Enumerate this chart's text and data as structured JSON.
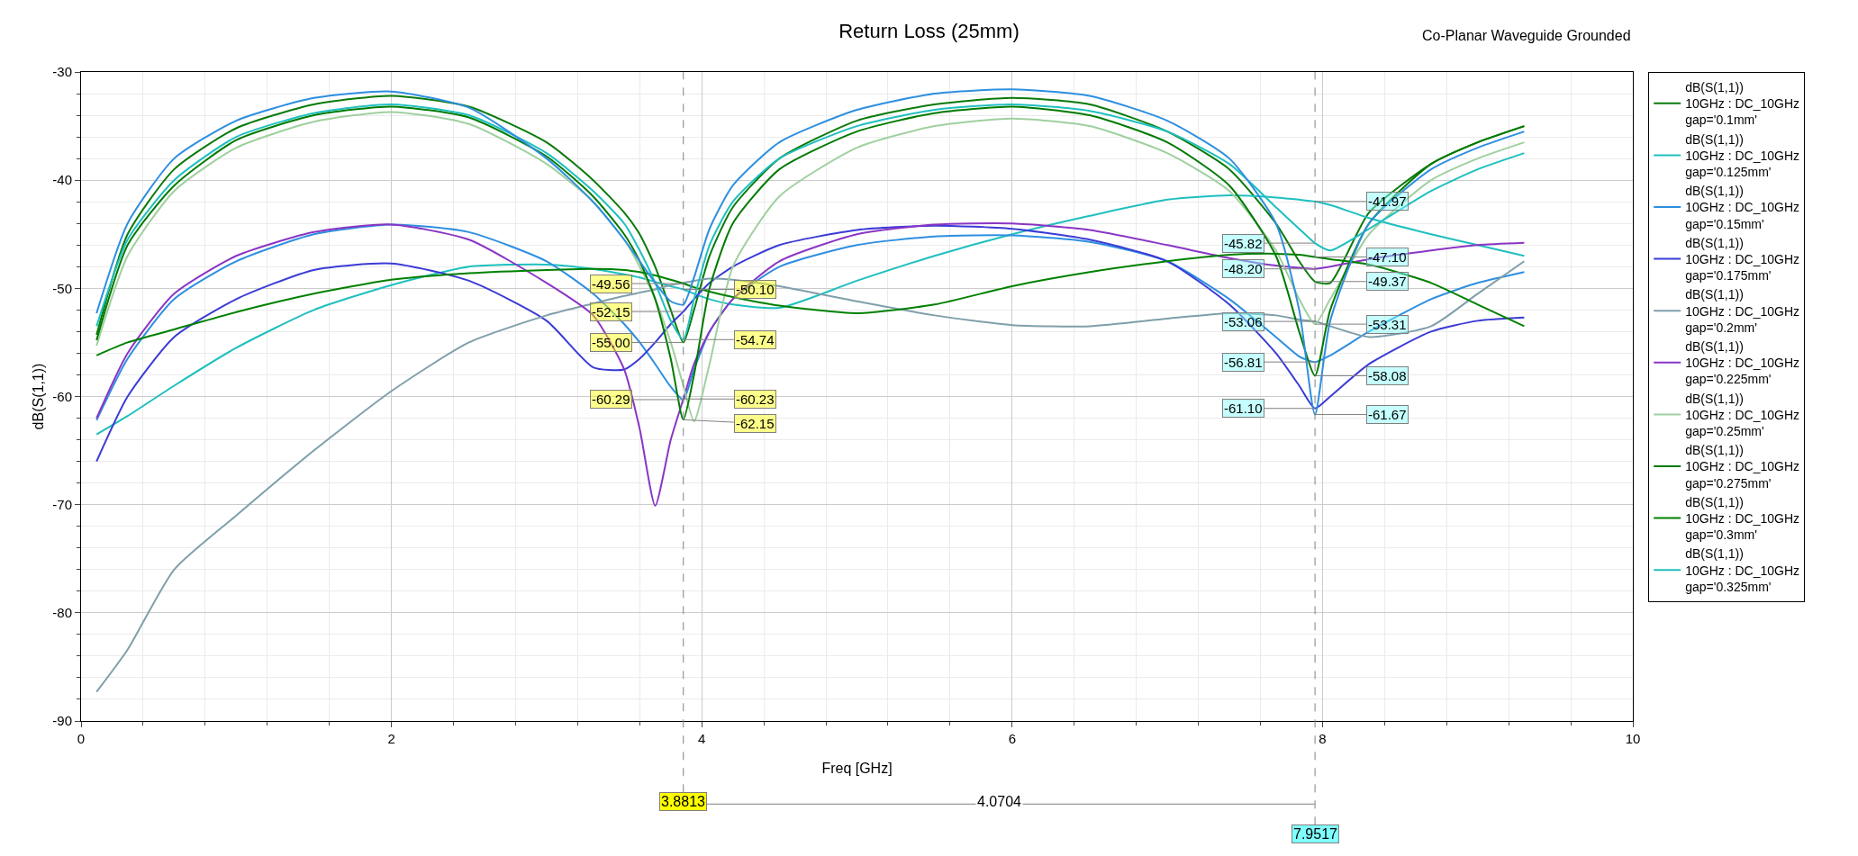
{
  "chart_data": {
    "type": "line",
    "title": "Return Loss (25mm)",
    "subtitle": "Co-Planar Waveguide Grounded",
    "xlabel": "Freq [GHz]",
    "ylabel": "dB(S(1,1))",
    "x": [
      0.1,
      0.3,
      0.6,
      1,
      1.5,
      2,
      2.5,
      3,
      3.3,
      3.5,
      3.6,
      3.7,
      3.8,
      3.8813,
      3.95,
      4.05,
      4.2,
      4.5,
      5,
      5.5,
      6,
      6.5,
      7,
      7.4,
      7.7,
      7.85,
      7.9517,
      8.05,
      8.3,
      8.7,
      9,
      9.3
    ],
    "xlim": [
      0,
      10
    ],
    "xticks": [
      0,
      2,
      4,
      6,
      8,
      10
    ],
    "ylim": [
      -90,
      -30
    ],
    "yticks": [
      -90,
      -80,
      -70,
      -60,
      -50,
      -40,
      -30
    ],
    "grid": true,
    "legend": "right",
    "line_style": "solid",
    "series": [
      {
        "name": "dB(S(1,1))\n10GHz : DC_10GHz\ngap='0.1mm'",
        "color": "#0a7a0a",
        "values": [
          -54.3,
          -45,
          -39,
          -35.2,
          -33,
          -32.2,
          -33.2,
          -36.5,
          -40,
          -43,
          -45,
          -48,
          -52,
          -55.0,
          -52,
          -47,
          -42.5,
          -38,
          -34.5,
          -33,
          -32.4,
          -33,
          -35.5,
          -39,
          -44,
          -47.5,
          -49.37,
          -49.5,
          -43,
          -38.5,
          -36.5,
          -35
        ]
      },
      {
        "name": "dB(S(1,1))\n10GHz : DC_10GHz\ngap='0.125mm'",
        "color": "#1fbfbf",
        "values": [
          -63.5,
          -61.8,
          -59,
          -55.5,
          -52,
          -49.7,
          -48,
          -47.8,
          -48.2,
          -48.7,
          -49,
          -49.4,
          -49.8,
          -50.1,
          -50.5,
          -51,
          -51.5,
          -51.8,
          -49.3,
          -47,
          -45,
          -43.3,
          -41.8,
          -41.4,
          -41.6,
          -41.8,
          -41.97,
          -42.3,
          -43.5,
          -45,
          -46,
          -47
        ]
      },
      {
        "name": "dB(S(1,1))\n10GHz : DC_10GHz\ngap='0.15mm'",
        "color": "#2e8fe0",
        "values": [
          -62.2,
          -56.5,
          -51,
          -47.5,
          -45,
          -44.1,
          -44.8,
          -47.5,
          -50.5,
          -53.3,
          -55,
          -57,
          -59.1,
          -60.29,
          -57.5,
          -54,
          -51,
          -48,
          -46,
          -45.2,
          -45.1,
          -45.7,
          -47.5,
          -51,
          -54.5,
          -56.3,
          -56.81,
          -56.2,
          -54,
          -51,
          -49.5,
          -48.5
        ]
      },
      {
        "name": "dB(S(1,1))\n10GHz : DC_10GHz\ngap='0.175mm'",
        "color": "#3b3bd6",
        "values": [
          -66,
          -60,
          -54.5,
          -51,
          -48.3,
          -47.7,
          -49.3,
          -53,
          -57.3,
          -57.5,
          -56.5,
          -55,
          -53.3,
          -52.15,
          -51,
          -49.5,
          -48,
          -46,
          -44.6,
          -44.2,
          -44.5,
          -45.5,
          -47.5,
          -51.5,
          -56,
          -59,
          -61.1,
          -60,
          -57,
          -54,
          -53,
          -52.7
        ]
      },
      {
        "name": "dB(S(1,1))\n10GHz : DC_10GHz\ngap='0.2mm'",
        "color": "#7f9faa",
        "values": [
          -87.3,
          -83.4,
          -76,
          -71,
          -65,
          -59.5,
          -55,
          -52.5,
          -51.4,
          -50.7,
          -50.4,
          -50.1,
          -49.7,
          -49.5,
          -49.3,
          -49.1,
          -49.2,
          -49.8,
          -51.2,
          -52.5,
          -53.4,
          -53.5,
          -52.8,
          -52.3,
          -52.5,
          -52.9,
          -53.06,
          -53.5,
          -54.5,
          -53.5,
          -50.5,
          -47.5
        ]
      },
      {
        "name": "dB(S(1,1))\n10GHz : DC_10GHz\ngap='0.225mm'",
        "color": "#8a35c4",
        "values": [
          -62,
          -56,
          -50.5,
          -47,
          -44.8,
          -44.1,
          -45.5,
          -49.5,
          -52.5,
          -57.5,
          -63,
          -70.1,
          -64,
          -60.23,
          -57,
          -54,
          -51,
          -47.5,
          -45,
          -44.1,
          -44,
          -44.6,
          -46,
          -47.2,
          -47.9,
          -48.1,
          -48.2,
          -48,
          -47.3,
          -46.5,
          -46,
          -45.8
        ]
      },
      {
        "name": "dB(S(1,1))\n10GHz : DC_10GHz\ngap='0.25mm'",
        "color": "#9fd09f",
        "values": [
          -55.3,
          -47,
          -41,
          -37,
          -34.6,
          -33.7,
          -34.8,
          -38.5,
          -42,
          -45.5,
          -48,
          -51,
          -55,
          -59,
          -62.3,
          -57,
          -48,
          -41.5,
          -37,
          -35,
          -34.3,
          -35,
          -37.5,
          -41,
          -46.5,
          -51,
          -53.31,
          -51,
          -45,
          -40,
          -38,
          -36.5
        ]
      },
      {
        "name": "dB(S(1,1))\n10GHz : DC_10GHz\ngap='0.275mm'",
        "color": "#007a00",
        "values": [
          -54.8,
          -46,
          -40.5,
          -36.3,
          -34,
          -33.2,
          -34.2,
          -37.8,
          -41.5,
          -45,
          -47.5,
          -51,
          -56.5,
          -62.15,
          -58,
          -50,
          -44,
          -39,
          -35.5,
          -33.8,
          -33.2,
          -34,
          -36.5,
          -40.5,
          -47,
          -54,
          -58.08,
          -52,
          -44,
          -38.5,
          -36.5,
          -35
        ]
      },
      {
        "name": "dB(S(1,1))\n10GHz : DC_10GHz\ngap='0.3mm'",
        "color": "#008000",
        "values": [
          -56.2,
          -55,
          -53.8,
          -52.2,
          -50.5,
          -49.2,
          -48.6,
          -48.3,
          -48.2,
          -48.3,
          -48.5,
          -48.8,
          -49.2,
          -49.56,
          -49.9,
          -50.3,
          -50.8,
          -51.6,
          -52.3,
          -51.5,
          -49.8,
          -48.5,
          -47.5,
          -46.9,
          -46.8,
          -46.9,
          -47.1,
          -47.3,
          -47.8,
          -49.5,
          -51.5,
          -53.5
        ]
      },
      {
        "name": "dB(S(1,1))\n10GHz : DC_10GHz\ngap='0.325mm'",
        "color": "#1fbfbf",
        "values": [
          -53.5,
          -45.5,
          -40,
          -36,
          -33.8,
          -33,
          -34,
          -37.5,
          -41,
          -44,
          -46.5,
          -49.5,
          -53,
          -54.74,
          -51,
          -46,
          -42,
          -38,
          -35,
          -33.5,
          -33,
          -33.6,
          -35.5,
          -38.5,
          -42.5,
          -44.5,
          -45.82,
          -46.5,
          -44.5,
          -41,
          -39,
          -37.5
        ]
      },
      {
        "color": "#2e8fe0",
        "values": [
          -52.3,
          -44,
          -38,
          -34.5,
          -32.4,
          -31.8,
          -33.3,
          -38,
          -42,
          -45.5,
          -47.5,
          -49.5,
          -51.2,
          -51.5,
          -49,
          -44.5,
          -40.5,
          -36.5,
          -33.5,
          -32,
          -31.6,
          -32.2,
          -34.5,
          -38,
          -44,
          -52,
          -61.67,
          -53,
          -44,
          -39,
          -37,
          -35.5
        ]
      }
    ],
    "ref_lines": [
      {
        "axis": "x",
        "value": 3.8813,
        "label": "3.8813",
        "color": "#808080",
        "line_style": "dashed"
      },
      {
        "axis": "x",
        "value": 7.9517,
        "label": "7.9517",
        "color": "#808080",
        "line_style": "dashed"
      }
    ],
    "annotations": [
      {
        "text": "-49.56",
        "x": 3.8813,
        "y": -49.56
      },
      {
        "text": "-50.10",
        "x": 3.8813,
        "y": -50.1
      },
      {
        "text": "-52.15",
        "x": 3.8813,
        "y": -52.15
      },
      {
        "text": "-54.74",
        "x": 3.8813,
        "y": -54.74
      },
      {
        "text": "-55.00",
        "x": 3.8813,
        "y": -55.0
      },
      {
        "text": "-60.23",
        "x": 3.8813,
        "y": -60.23
      },
      {
        "text": "-60.29",
        "x": 3.8813,
        "y": -60.29
      },
      {
        "text": "-62.15",
        "x": 3.8813,
        "y": -62.15
      },
      {
        "text": "-41.97",
        "x": 7.9517,
        "y": -41.97
      },
      {
        "text": "-45.82",
        "x": 7.9517,
        "y": -45.82
      },
      {
        "text": "-47.10",
        "x": 7.9517,
        "y": -47.1
      },
      {
        "text": "-48.20",
        "x": 7.9517,
        "y": -48.2
      },
      {
        "text": "-49.37",
        "x": 7.9517,
        "y": -49.37
      },
      {
        "text": "-53.06",
        "x": 7.9517,
        "y": -53.06
      },
      {
        "text": "-53.31",
        "x": 7.9517,
        "y": -53.31
      },
      {
        "text": "-56.81",
        "x": 7.9517,
        "y": -56.81
      },
      {
        "text": "-58.08",
        "x": 7.9517,
        "y": -58.08
      },
      {
        "text": "-61.10",
        "x": 7.9517,
        "y": -61.1
      },
      {
        "text": "-61.67",
        "x": 7.9517,
        "y": -61.67
      },
      "4.0704"
    ]
  }
}
